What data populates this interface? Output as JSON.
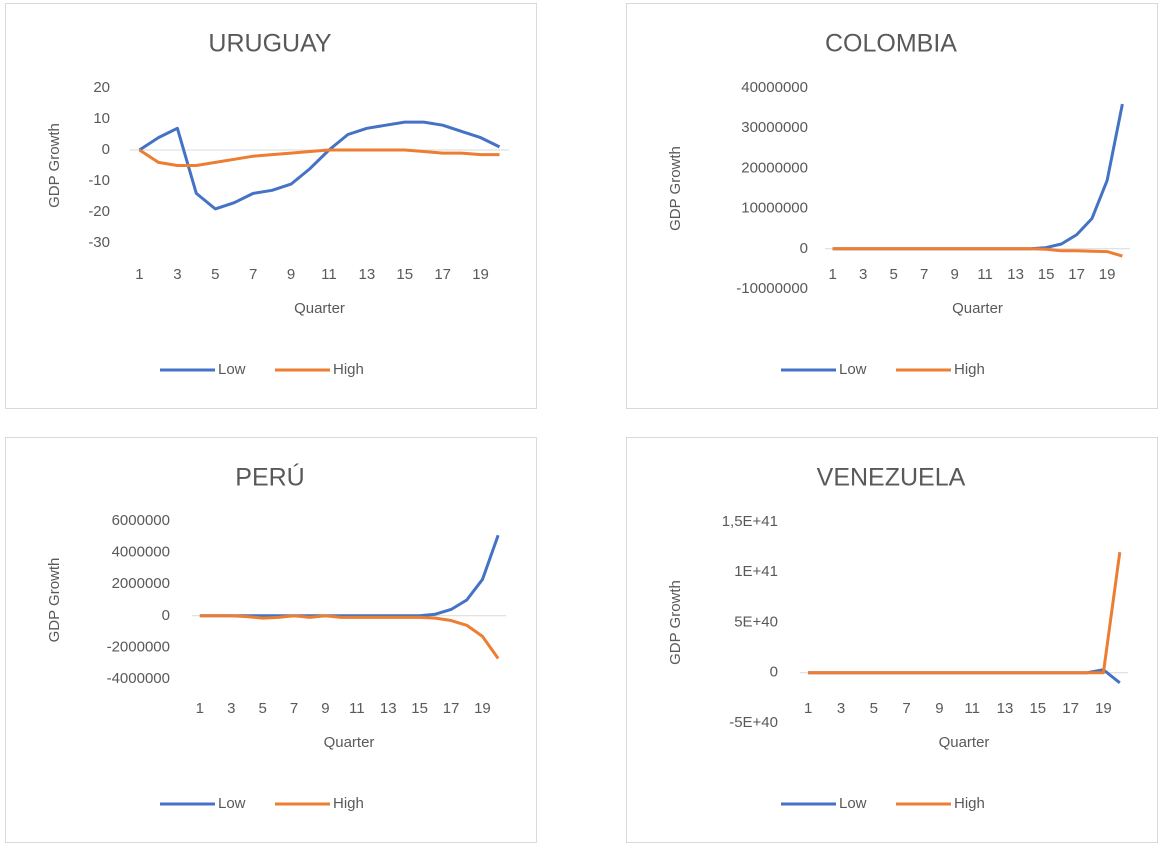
{
  "chart_data": [
    {
      "type": "line",
      "title": "URUGUAY",
      "x_label": "Quarter",
      "y_label": "GDP Growth",
      "categories": [
        1,
        null,
        3,
        null,
        5,
        null,
        7,
        null,
        9,
        null,
        11,
        null,
        13,
        null,
        15,
        null,
        17,
        null,
        19,
        null
      ],
      "series": [
        {
          "name": "Low",
          "color": "#4472c4",
          "values": [
            0,
            4,
            7,
            -14,
            -19,
            -17,
            -14,
            -13,
            -11,
            -6,
            0,
            5,
            7,
            8,
            9,
            9,
            8,
            6,
            4,
            1
          ]
        },
        {
          "name": "High",
          "color": "#ed7d31",
          "values": [
            0,
            -4,
            -5,
            -5,
            -4,
            -3,
            -2,
            -1.5,
            -1,
            -0.5,
            0,
            0,
            0,
            0,
            0,
            -0.5,
            -1,
            -1,
            -1.5,
            -1.5
          ]
        }
      ],
      "ylim": [
        -30,
        20
      ],
      "yticks": [
        -30,
        -20,
        -10,
        0,
        10,
        20
      ],
      "legend": "bottom",
      "grid": false
    },
    {
      "type": "line",
      "title": "COLOMBIA",
      "x_label": "Quarter",
      "y_label": "GDP Growth",
      "categories": [
        1,
        null,
        3,
        null,
        5,
        null,
        7,
        null,
        9,
        null,
        11,
        null,
        13,
        null,
        15,
        null,
        17,
        null,
        19,
        null
      ],
      "series": [
        {
          "name": "Low",
          "color": "#4472c4",
          "values": [
            0,
            0,
            0,
            0,
            0,
            0,
            0,
            0,
            0,
            0,
            0,
            0,
            0,
            0,
            300000,
            1200000,
            3500000,
            7500000,
            17000000,
            36000000
          ]
        },
        {
          "name": "High",
          "color": "#ed7d31",
          "values": [
            0,
            0,
            0,
            0,
            0,
            0,
            0,
            0,
            0,
            0,
            0,
            0,
            0,
            0,
            -100000,
            -500000,
            -500000,
            -600000,
            -700000,
            -1800000
          ]
        }
      ],
      "ylim": [
        -10000000,
        40000000
      ],
      "yticks": [
        -10000000,
        0,
        10000000,
        20000000,
        30000000,
        40000000
      ],
      "legend": "bottom",
      "grid": false
    },
    {
      "type": "line",
      "title": "PERÚ",
      "x_label": "Quarter",
      "y_label": "GDP Growth",
      "categories": [
        1,
        null,
        3,
        null,
        5,
        null,
        7,
        null,
        9,
        null,
        11,
        null,
        13,
        null,
        15,
        null,
        17,
        null,
        19,
        null
      ],
      "series": [
        {
          "name": "Low",
          "color": "#4472c4",
          "values": [
            0,
            0,
            0,
            0,
            0,
            0,
            0,
            0,
            0,
            0,
            0,
            0,
            0,
            0,
            0,
            100000,
            400000,
            1000000,
            2300000,
            5100000
          ]
        },
        {
          "name": "High",
          "color": "#ed7d31",
          "values": [
            0,
            0,
            0,
            -50000,
            -150000,
            -100000,
            0,
            -100000,
            0,
            -100000,
            -100000,
            -100000,
            -100000,
            -100000,
            -100000,
            -150000,
            -300000,
            -600000,
            -1300000,
            -2700000
          ]
        }
      ],
      "ylim": [
        -4000000,
        6000000
      ],
      "yticks": [
        -4000000,
        -2000000,
        0,
        2000000,
        4000000,
        6000000
      ],
      "legend": "bottom",
      "grid": false
    },
    {
      "type": "line",
      "title": "VENEZUELA",
      "x_label": "Quarter",
      "y_label": "GDP Growth",
      "categories": [
        1,
        null,
        3,
        null,
        5,
        null,
        7,
        null,
        9,
        null,
        11,
        null,
        13,
        null,
        15,
        null,
        17,
        null,
        19,
        null
      ],
      "series": [
        {
          "name": "Low",
          "color": "#4472c4",
          "values": [
            0,
            0,
            0,
            0,
            0,
            0,
            0,
            0,
            0,
            0,
            0,
            0,
            0,
            0,
            0,
            0,
            0,
            0,
            3e+39,
            -1e+40
          ]
        },
        {
          "name": "High",
          "color": "#ed7d31",
          "values": [
            0,
            0,
            0,
            0,
            0,
            0,
            0,
            0,
            0,
            0,
            0,
            0,
            0,
            0,
            0,
            0,
            0,
            0,
            0,
            1.2e+41
          ]
        }
      ],
      "ylim": [
        -5e+40,
        1.5e+41
      ],
      "yticks": [
        {
          "value": -5e+40,
          "label": "-5E+40"
        },
        0,
        {
          "value": 5e+40,
          "label": "5E+40"
        },
        {
          "value": 1e+41,
          "label": "1E+41"
        },
        {
          "value": 1.5e+41,
          "label": "1,5E+41"
        }
      ],
      "legend": "bottom",
      "grid": false
    }
  ]
}
